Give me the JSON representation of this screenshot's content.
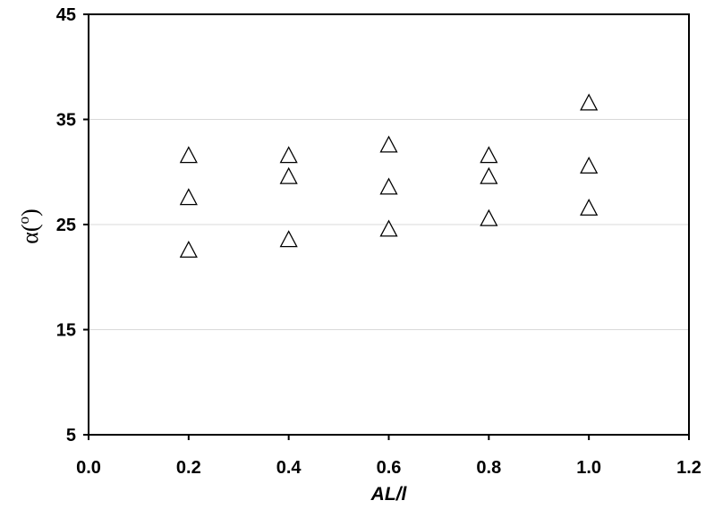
{
  "chart_data": {
    "type": "scatter",
    "title": "",
    "xlabel": "AL/l",
    "ylabel": {
      "base": "α(",
      "sup": "o",
      "close": ")"
    },
    "xlim": [
      0.0,
      1.2
    ],
    "ylim": [
      5,
      45
    ],
    "xticks": [
      "0.0",
      "0.2",
      "0.4",
      "0.6",
      "0.8",
      "1.0",
      "1.2"
    ],
    "yticks": [
      "5",
      "15",
      "25",
      "35",
      "45"
    ],
    "grid": "horizontal",
    "marker": "open-triangle",
    "series": [
      {
        "points": [
          {
            "x": 0.2,
            "y": 31.5
          },
          {
            "x": 0.2,
            "y": 27.5
          },
          {
            "x": 0.2,
            "y": 22.5
          },
          {
            "x": 0.4,
            "y": 31.5
          },
          {
            "x": 0.4,
            "y": 29.5
          },
          {
            "x": 0.4,
            "y": 23.5
          },
          {
            "x": 0.6,
            "y": 32.5
          },
          {
            "x": 0.6,
            "y": 28.5
          },
          {
            "x": 0.6,
            "y": 24.5
          },
          {
            "x": 0.8,
            "y": 31.5
          },
          {
            "x": 0.8,
            "y": 29.5
          },
          {
            "x": 0.8,
            "y": 25.5
          },
          {
            "x": 1.0,
            "y": 36.5
          },
          {
            "x": 1.0,
            "y": 30.5
          },
          {
            "x": 1.0,
            "y": 26.5
          }
        ]
      }
    ]
  }
}
